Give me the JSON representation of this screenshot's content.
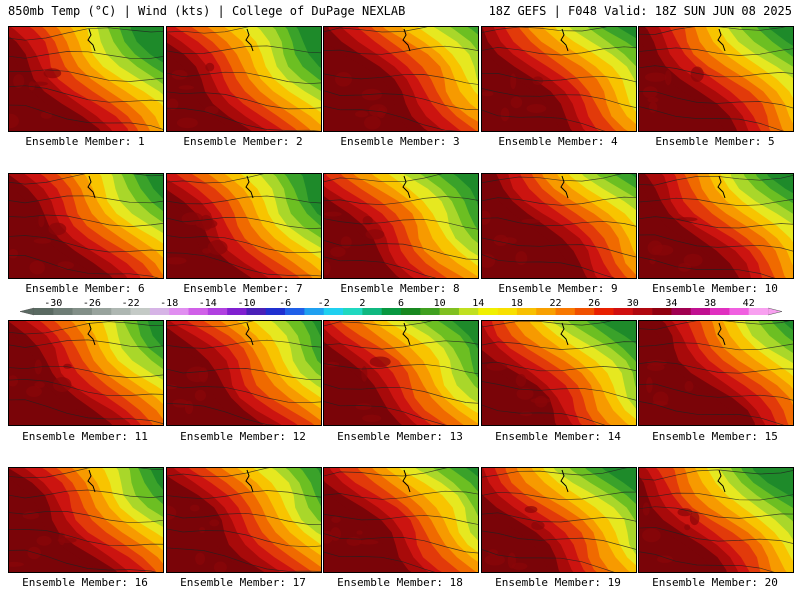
{
  "header": {
    "left": "850mb Temp (°C) | Wind (kts) | College of DuPage NEXLAB",
    "right": "18Z GEFS | F048 Valid: 18Z SUN JUN 08 2025"
  },
  "panels": [
    {
      "label": "Ensemble Member: 1",
      "variant": 0
    },
    {
      "label": "Ensemble Member: 2",
      "variant": 1
    },
    {
      "label": "Ensemble Member: 3",
      "variant": 2
    },
    {
      "label": "Ensemble Member: 4",
      "variant": 3
    },
    {
      "label": "Ensemble Member: 5",
      "variant": 4
    },
    {
      "label": "Ensemble Member: 6",
      "variant": 5
    },
    {
      "label": "Ensemble Member: 7",
      "variant": 6
    },
    {
      "label": "Ensemble Member: 8",
      "variant": 7
    },
    {
      "label": "Ensemble Member: 9",
      "variant": 8
    },
    {
      "label": "Ensemble Member: 10",
      "variant": 9
    },
    {
      "label": "Ensemble Member: 11",
      "variant": 10
    },
    {
      "label": "Ensemble Member: 12",
      "variant": 11
    },
    {
      "label": "Ensemble Member: 13",
      "variant": 12
    },
    {
      "label": "Ensemble Member: 14",
      "variant": 13
    },
    {
      "label": "Ensemble Member: 15",
      "variant": 14
    },
    {
      "label": "Ensemble Member: 16",
      "variant": 15
    },
    {
      "label": "Ensemble Member: 17",
      "variant": 16
    },
    {
      "label": "Ensemble Member: 18",
      "variant": 17
    },
    {
      "label": "Ensemble Member: 19",
      "variant": 18
    },
    {
      "label": "Ensemble Member: 20",
      "variant": 19
    }
  ],
  "colorbar": {
    "min": -32,
    "max": 44,
    "step": 2,
    "tick_labels": [
      "-30",
      "-26",
      "-22",
      "-18",
      "-14",
      "-10",
      "-6",
      "-2",
      "2",
      "6",
      "10",
      "14",
      "18",
      "22",
      "26",
      "30",
      "34",
      "38",
      "42"
    ],
    "tick_values": [
      -30,
      -26,
      -22,
      -18,
      -14,
      -10,
      -6,
      -2,
      2,
      6,
      10,
      14,
      18,
      22,
      26,
      30,
      34,
      38,
      42
    ],
    "colors": [
      "#5a6a62",
      "#6e7d76",
      "#828f88",
      "#98a39d",
      "#aeb7b2",
      "#c4cac6",
      "#d6b4e6",
      "#e08ef0",
      "#d060e8",
      "#b040e0",
      "#8020d0",
      "#4a20b8",
      "#2030d0",
      "#2060e8",
      "#20a0f0",
      "#20d0f0",
      "#20d8c0",
      "#10b880",
      "#089840",
      "#188820",
      "#40a020",
      "#80c020",
      "#c0e020",
      "#f0f000",
      "#f8e000",
      "#f8c000",
      "#f8a000",
      "#f87800",
      "#f05000",
      "#e82000",
      "#d01010",
      "#b00810",
      "#900010",
      "#a00050",
      "#c01090",
      "#e030c0",
      "#f060e0",
      "#f8a0f0"
    ]
  },
  "map_palette": [
    "#1e8a2a",
    "#3aa22a",
    "#6cbf22",
    "#a9d72a",
    "#e6e820",
    "#f8c400",
    "#f79a00",
    "#f06a00",
    "#e23a0a",
    "#cc1410",
    "#a80a0a",
    "#7a0408"
  ]
}
